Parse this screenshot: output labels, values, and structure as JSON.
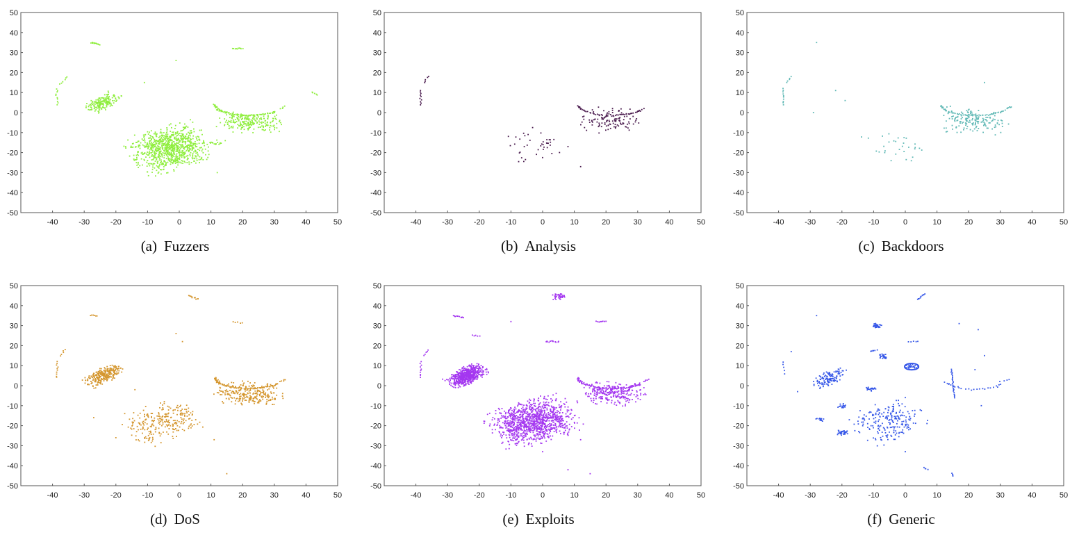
{
  "chart_data": [
    {
      "type": "scatter",
      "caption_tag": "(a)",
      "caption_name": "Fuzzers",
      "color": "#8fee3e",
      "xlim": [
        -50,
        50
      ],
      "ylim": [
        -50,
        50
      ],
      "xticks": [
        "-40",
        "-30",
        "-20",
        "-10",
        "0",
        "10",
        "20",
        "30",
        "40",
        "50"
      ],
      "yticks": [
        "50",
        "40",
        "30",
        "20",
        "10",
        "0",
        "-10",
        "-20",
        "-30",
        "-40",
        "-50"
      ],
      "grid": false,
      "clusters": [
        {
          "kind": "blob",
          "cx": -3,
          "cy": -18,
          "sx": 6,
          "sy": 5,
          "rot": 0.45,
          "n": 900
        },
        {
          "kind": "blob",
          "cx": -24,
          "cy": 5,
          "sx": 3,
          "sy": 1.5,
          "rot": 0.75,
          "n": 180
        },
        {
          "kind": "arc",
          "cx": 22,
          "cy": 4,
          "r": 9,
          "a0": 180,
          "a1": 320,
          "n": 90
        },
        {
          "kind": "blob",
          "cx": 22,
          "cy": -5,
          "sx": 5,
          "sy": 2.5,
          "rot": -0.1,
          "n": 220
        },
        {
          "kind": "line",
          "x0": -28,
          "y0": 35,
          "x1": -25,
          "y1": 34,
          "n": 15
        },
        {
          "kind": "line",
          "x0": 17,
          "y0": 32,
          "x1": 20,
          "y1": 32,
          "n": 10
        },
        {
          "kind": "line",
          "x0": -38.5,
          "y0": 12,
          "x1": -38.5,
          "y1": 4,
          "n": 10
        },
        {
          "kind": "line",
          "x0": -37.5,
          "y0": 14,
          "x1": -35.5,
          "y1": 18,
          "n": 6
        },
        {
          "kind": "line",
          "x0": 42,
          "y0": 10,
          "x1": 43.5,
          "y1": 9,
          "n": 5
        },
        {
          "kind": "line",
          "x0": 32,
          "y0": 2,
          "x1": 33,
          "y1": 3,
          "n": 4
        },
        {
          "kind": "blob",
          "cx": 12,
          "cy": -15,
          "sx": 1.2,
          "sy": 0.8,
          "rot": 0,
          "n": 15
        },
        {
          "kind": "point",
          "x": -1,
          "y": 26
        },
        {
          "kind": "point",
          "x": -11,
          "y": 15
        },
        {
          "kind": "point",
          "x": 12,
          "y": -30
        }
      ]
    },
    {
      "type": "scatter",
      "caption_tag": "(b)",
      "caption_name": "Analysis",
      "color": "#4a1b4e",
      "xlim": [
        -50,
        50
      ],
      "ylim": [
        -50,
        50
      ],
      "xticks": [
        "-40",
        "-30",
        "-20",
        "-10",
        "0",
        "10",
        "20",
        "30",
        "40",
        "50"
      ],
      "yticks": [
        "50",
        "40",
        "30",
        "20",
        "10",
        "0",
        "-10",
        "-20",
        "-30",
        "-40",
        "-50"
      ],
      "grid": false,
      "clusters": [
        {
          "kind": "arc",
          "cx": 22,
          "cy": 4,
          "r": 9,
          "a0": 185,
          "a1": 330,
          "n": 45
        },
        {
          "kind": "blob",
          "cx": 21,
          "cy": -4,
          "sx": 4.5,
          "sy": 3,
          "rot": -0.1,
          "n": 120
        },
        {
          "kind": "blob",
          "cx": -3,
          "cy": -16,
          "sx": 4,
          "sy": 4,
          "rot": 0.5,
          "n": 40
        },
        {
          "kind": "line",
          "x0": -38.5,
          "y0": 11,
          "x1": -38.5,
          "y1": 4,
          "n": 10
        },
        {
          "kind": "line",
          "x0": -37.5,
          "y0": 15,
          "x1": -36,
          "y1": 18,
          "n": 5
        },
        {
          "kind": "point",
          "x": 32,
          "y": 2
        },
        {
          "kind": "point",
          "x": 12,
          "y": -27
        },
        {
          "kind": "point",
          "x": 8,
          "y": -17
        }
      ]
    },
    {
      "type": "scatter",
      "caption_tag": "(c)",
      "caption_name": "Backdoors",
      "color": "#5fb8b5",
      "xlim": [
        -50,
        50
      ],
      "ylim": [
        -50,
        50
      ],
      "xticks": [
        "-40",
        "-30",
        "-20",
        "-10",
        "0",
        "10",
        "20",
        "30",
        "40",
        "50"
      ],
      "yticks": [
        "50",
        "40",
        "30",
        "20",
        "10",
        "0",
        "-10",
        "-20",
        "-30",
        "-40",
        "-50"
      ],
      "grid": false,
      "clusters": [
        {
          "kind": "arc",
          "cx": 22,
          "cy": 4,
          "r": 9,
          "a0": 185,
          "a1": 330,
          "n": 55
        },
        {
          "kind": "blob",
          "cx": 22,
          "cy": -4,
          "sx": 5,
          "sy": 3,
          "rot": -0.1,
          "n": 160
        },
        {
          "kind": "blob",
          "cx": -3,
          "cy": -18,
          "sx": 4,
          "sy": 5,
          "rot": 0.6,
          "n": 30
        },
        {
          "kind": "line",
          "x0": -38.5,
          "y0": 12,
          "x1": -38.5,
          "y1": 4,
          "n": 10
        },
        {
          "kind": "line",
          "x0": -37.5,
          "y0": 15,
          "x1": -36,
          "y1": 18,
          "n": 5
        },
        {
          "kind": "line",
          "x0": 32,
          "y0": 2,
          "x1": 33.5,
          "y1": 3,
          "n": 6
        },
        {
          "kind": "point",
          "x": -28,
          "y": 35
        },
        {
          "kind": "point",
          "x": -22,
          "y": 11
        },
        {
          "kind": "point",
          "x": -19,
          "y": 6
        },
        {
          "kind": "point",
          "x": 25,
          "y": 15
        },
        {
          "kind": "point",
          "x": -29,
          "y": 0
        }
      ]
    },
    {
      "type": "scatter",
      "caption_tag": "(d)",
      "caption_name": "DoS",
      "color": "#d4962e",
      "xlim": [
        -50,
        50
      ],
      "ylim": [
        -50,
        50
      ],
      "xticks": [
        "-40",
        "-30",
        "-20",
        "-10",
        "0",
        "10",
        "20",
        "30",
        "40",
        "50"
      ],
      "yticks": [
        "50",
        "40",
        "30",
        "20",
        "10",
        "0",
        "-10",
        "-20",
        "-30",
        "-40",
        "-50"
      ],
      "grid": false,
      "clusters": [
        {
          "kind": "blob",
          "cx": -24,
          "cy": 5,
          "sx": 3.2,
          "sy": 1.6,
          "rot": 0.75,
          "n": 260
        },
        {
          "kind": "arc",
          "cx": 22,
          "cy": 4,
          "r": 9,
          "a0": 180,
          "a1": 325,
          "n": 90
        },
        {
          "kind": "blob",
          "cx": 22,
          "cy": -4,
          "sx": 5,
          "sy": 2.8,
          "rot": -0.1,
          "n": 260
        },
        {
          "kind": "blob",
          "cx": -5,
          "cy": -18,
          "sx": 6,
          "sy": 4.5,
          "rot": 0.5,
          "n": 260
        },
        {
          "kind": "line",
          "x0": 3,
          "y0": 45,
          "x1": 6,
          "y1": 43,
          "n": 10
        },
        {
          "kind": "line",
          "x0": -28,
          "y0": 35,
          "x1": -26,
          "y1": 35,
          "n": 6
        },
        {
          "kind": "line",
          "x0": 17,
          "y0": 32,
          "x1": 20,
          "y1": 31,
          "n": 5
        },
        {
          "kind": "line",
          "x0": -38.5,
          "y0": 12,
          "x1": -38.5,
          "y1": 4,
          "n": 10
        },
        {
          "kind": "line",
          "x0": -37.5,
          "y0": 15,
          "x1": -36,
          "y1": 18,
          "n": 5
        },
        {
          "kind": "line",
          "x0": 32,
          "y0": 2,
          "x1": 33.5,
          "y1": 3,
          "n": 5
        },
        {
          "kind": "point",
          "x": 1,
          "y": 22
        },
        {
          "kind": "point",
          "x": -1,
          "y": 26
        },
        {
          "kind": "point",
          "x": 11,
          "y": -27
        },
        {
          "kind": "point",
          "x": 15,
          "y": -44
        },
        {
          "kind": "point",
          "x": -27,
          "y": -16
        },
        {
          "kind": "point",
          "x": -20,
          "y": -26
        },
        {
          "kind": "point",
          "x": -14,
          "y": -2
        }
      ]
    },
    {
      "type": "scatter",
      "caption_tag": "(e)",
      "caption_name": "Exploits",
      "color": "#a437f0",
      "xlim": [
        -50,
        50
      ],
      "ylim": [
        -50,
        50
      ],
      "xticks": [
        "-40",
        "-30",
        "-20",
        "-10",
        "0",
        "10",
        "20",
        "30",
        "40",
        "50"
      ],
      "yticks": [
        "50",
        "40",
        "30",
        "20",
        "10",
        "0",
        "-10",
        "-20",
        "-30",
        "-40",
        "-50"
      ],
      "grid": false,
      "clusters": [
        {
          "kind": "blob",
          "cx": -3,
          "cy": -18,
          "sx": 6.5,
          "sy": 5,
          "rot": 0.45,
          "n": 1100
        },
        {
          "kind": "blob",
          "cx": -24,
          "cy": 5,
          "sx": 3.2,
          "sy": 1.8,
          "rot": 0.75,
          "n": 600
        },
        {
          "kind": "arc",
          "cx": 22,
          "cy": 4,
          "r": 9,
          "a0": 180,
          "a1": 325,
          "n": 90
        },
        {
          "kind": "blob",
          "cx": 22,
          "cy": -4,
          "sx": 5,
          "sy": 2.8,
          "rot": -0.1,
          "n": 260
        },
        {
          "kind": "blob",
          "cx": 5,
          "cy": 44.5,
          "sx": 1,
          "sy": 0.8,
          "rot": 0,
          "n": 40
        },
        {
          "kind": "line",
          "x0": -28,
          "y0": 35,
          "x1": -25,
          "y1": 34,
          "n": 12
        },
        {
          "kind": "line",
          "x0": 17,
          "y0": 32,
          "x1": 20,
          "y1": 32,
          "n": 8
        },
        {
          "kind": "line",
          "x0": 1,
          "y0": 22,
          "x1": 5,
          "y1": 22,
          "n": 12
        },
        {
          "kind": "line",
          "x0": -22,
          "y0": 25,
          "x1": -20,
          "y1": 25,
          "n": 5
        },
        {
          "kind": "line",
          "x0": -38.5,
          "y0": 12,
          "x1": -38.5,
          "y1": 4,
          "n": 10
        },
        {
          "kind": "line",
          "x0": -37.5,
          "y0": 15,
          "x1": -36,
          "y1": 18,
          "n": 5
        },
        {
          "kind": "line",
          "x0": 32,
          "y0": 2,
          "x1": 33.5,
          "y1": 3,
          "n": 5
        },
        {
          "kind": "point",
          "x": -10,
          "y": 32
        },
        {
          "kind": "point",
          "x": 12,
          "y": -27
        },
        {
          "kind": "point",
          "x": 15,
          "y": -44
        },
        {
          "kind": "point",
          "x": 0,
          "y": -33
        },
        {
          "kind": "point",
          "x": 8,
          "y": -42
        }
      ]
    },
    {
      "type": "scatter",
      "caption_tag": "(f)",
      "caption_name": "Generic",
      "color": "#3657e8",
      "xlim": [
        -50,
        50
      ],
      "ylim": [
        -50,
        50
      ],
      "xticks": [
        "-40",
        "-30",
        "-20",
        "-10",
        "0",
        "10",
        "20",
        "30",
        "40",
        "50"
      ],
      "yticks": [
        "50",
        "40",
        "30",
        "20",
        "10",
        "0",
        "-10",
        "-20",
        "-30",
        "-40",
        "-50"
      ],
      "grid": false,
      "clusters": [
        {
          "kind": "ring",
          "cx": 2,
          "cy": 9.5,
          "rx": 2.2,
          "ry": 1.6,
          "n": 60
        },
        {
          "kind": "blob",
          "cx": 2,
          "cy": 9.5,
          "sx": 1,
          "sy": 0.7,
          "rot": 0,
          "n": 30
        },
        {
          "kind": "blob",
          "cx": -24,
          "cy": 4,
          "sx": 3,
          "sy": 1.6,
          "rot": 0.75,
          "n": 120
        },
        {
          "kind": "blob",
          "cx": -5,
          "cy": -18,
          "sx": 5.5,
          "sy": 4.5,
          "rot": 0.55,
          "n": 220
        },
        {
          "kind": "blob",
          "cx": -9,
          "cy": 30,
          "sx": 0.8,
          "sy": 0.6,
          "rot": 0,
          "n": 30
        },
        {
          "kind": "blob",
          "cx": -7,
          "cy": 15,
          "sx": 0.7,
          "sy": 0.7,
          "rot": 0,
          "n": 25
        },
        {
          "kind": "blob",
          "cx": -11,
          "cy": -1.5,
          "sx": 0.8,
          "sy": 0.6,
          "rot": 0,
          "n": 25
        },
        {
          "kind": "blob",
          "cx": -20,
          "cy": -10,
          "sx": 0.7,
          "sy": 0.6,
          "rot": 0,
          "n": 20
        },
        {
          "kind": "blob",
          "cx": -20,
          "cy": -23.5,
          "sx": 1,
          "sy": 0.7,
          "rot": 0,
          "n": 35
        },
        {
          "kind": "blob",
          "cx": -27,
          "cy": -17,
          "sx": 0.6,
          "sy": 0.6,
          "rot": 0,
          "n": 15
        },
        {
          "kind": "line",
          "x0": 14.5,
          "y0": 8,
          "x1": 15.5,
          "y1": -6,
          "n": 25
        },
        {
          "kind": "line",
          "x0": 4,
          "y0": 43,
          "x1": 6,
          "y1": 46,
          "n": 10
        },
        {
          "kind": "line",
          "x0": -11,
          "y0": 17,
          "x1": -9,
          "y1": 18,
          "n": 6
        },
        {
          "kind": "line",
          "x0": 1,
          "y0": 22,
          "x1": 4,
          "y1": 22,
          "n": 5
        },
        {
          "kind": "line",
          "x0": -38.5,
          "y0": 12,
          "x1": -38,
          "y1": 6,
          "n": 5
        },
        {
          "kind": "line",
          "x0": 6,
          "y0": -41,
          "x1": 7,
          "y1": -42,
          "n": 4
        },
        {
          "kind": "line",
          "x0": 14.5,
          "y0": -44,
          "x1": 15,
          "y1": -45,
          "n": 4
        },
        {
          "kind": "line",
          "x0": 30,
          "y0": 2,
          "x1": 33,
          "y1": 3,
          "n": 4
        },
        {
          "kind": "arc",
          "cx": 22,
          "cy": 3,
          "r": 8,
          "a0": 195,
          "a1": 330,
          "n": 25
        },
        {
          "kind": "point",
          "x": -28,
          "y": 35
        },
        {
          "kind": "point",
          "x": 17,
          "y": 31
        },
        {
          "kind": "point",
          "x": 23,
          "y": 28
        },
        {
          "kind": "point",
          "x": 25,
          "y": 15
        },
        {
          "kind": "point",
          "x": 22,
          "y": 8
        },
        {
          "kind": "point",
          "x": -34,
          "y": -3
        },
        {
          "kind": "point",
          "x": -36,
          "y": 17
        },
        {
          "kind": "point",
          "x": 0,
          "y": -33
        },
        {
          "kind": "point",
          "x": 24,
          "y": -10
        }
      ]
    }
  ]
}
